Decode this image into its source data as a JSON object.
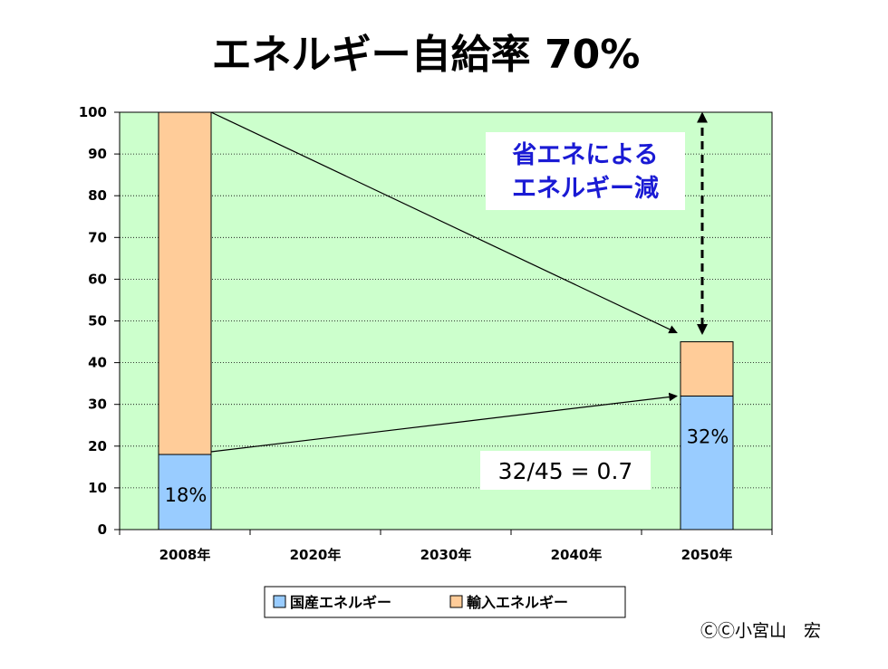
{
  "title": "エネルギー自給率 70%",
  "chart_data": {
    "type": "bar",
    "stacked": true,
    "categories": [
      "2008年",
      "2020年",
      "2030年",
      "2040年",
      "2050年"
    ],
    "series": [
      {
        "name": "国産エネルギー",
        "values": [
          18,
          null,
          null,
          null,
          32
        ],
        "color": "#99ccff"
      },
      {
        "name": "輸入エネルギー",
        "values": [
          82,
          null,
          null,
          null,
          13
        ],
        "color": "#ffcc99"
      }
    ],
    "ylim": [
      0,
      100
    ],
    "yticks": [
      0,
      10,
      20,
      30,
      40,
      50,
      60,
      70,
      80,
      90,
      100
    ],
    "grid": true,
    "plot_background": "#ccffcc",
    "legend_position": "bottom",
    "data_labels": {
      "2008年": "18%",
      "2050年": "32%"
    },
    "annotations": {
      "saving_label_lines": [
        "省エネによる",
        "エネルギー減"
      ],
      "ratio_label": "32/45 = 0.7"
    }
  },
  "copyright": "ⒸⒸ小宮山　宏"
}
